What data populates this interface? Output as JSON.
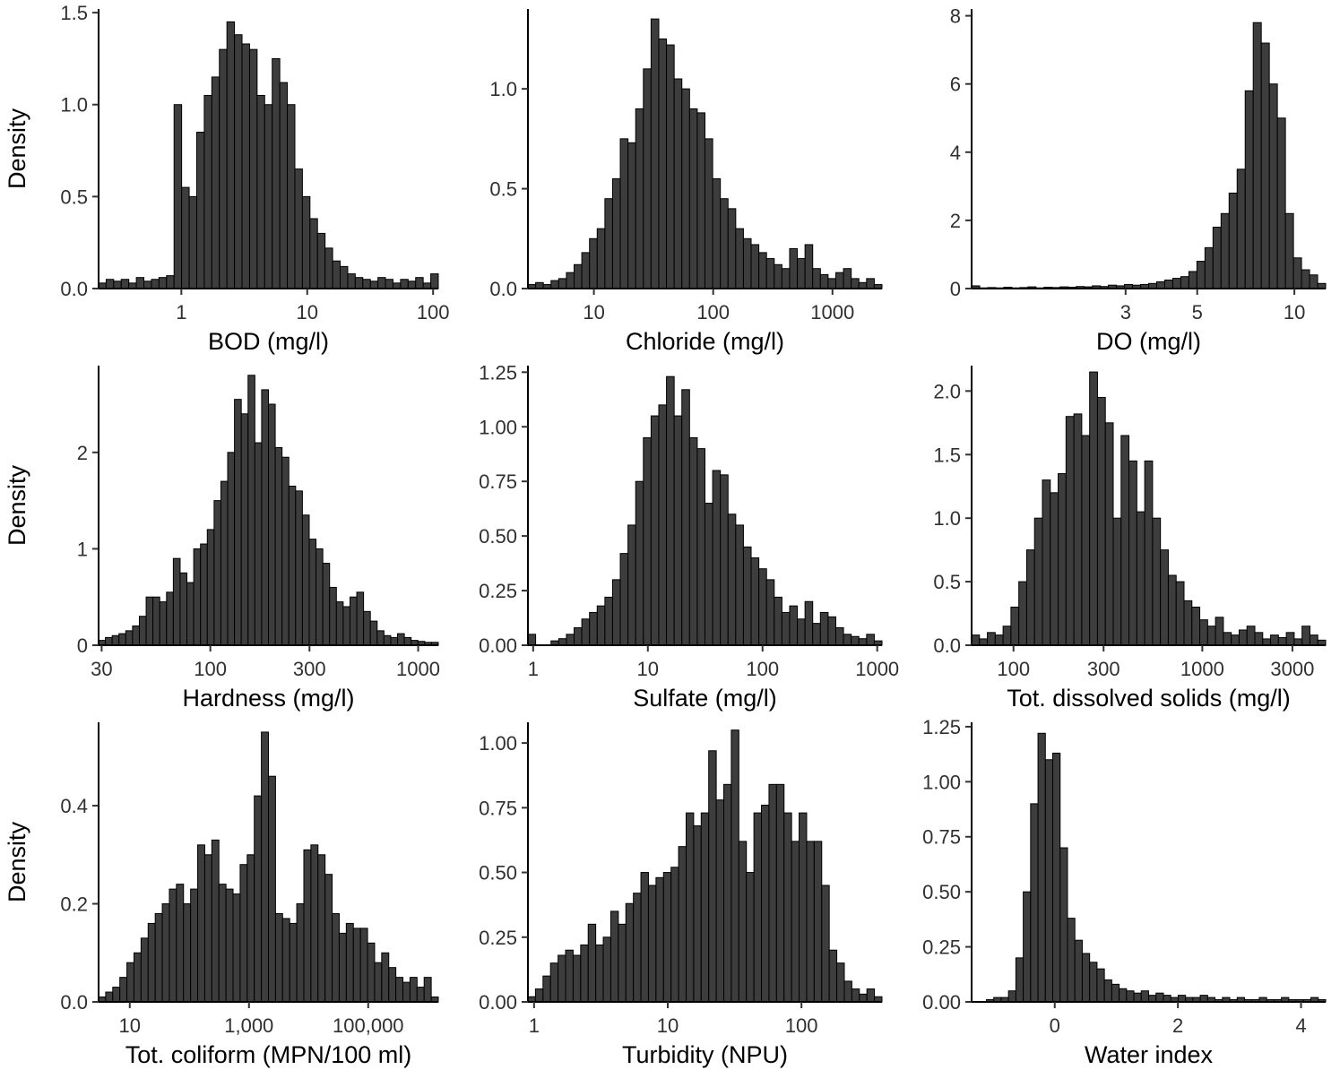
{
  "page": {
    "background": "#ffffff",
    "bar_fill": "#3d3d3d",
    "bar_stroke": "#000000",
    "axis_color": "#000000",
    "text_color": "#303030"
  },
  "chart_data": [
    {
      "type": "bar",
      "xlabel": "BOD (mg/l)",
      "ylabel": "Density",
      "x_scale": "log",
      "x_domain": [
        0.22,
        110
      ],
      "x_ticks": [
        1,
        10,
        100
      ],
      "x_tick_labels": [
        "1",
        "10",
        "100"
      ],
      "y_ticks": [
        0,
        0.5,
        1,
        1.5
      ],
      "y_tick_labels": [
        "0.0",
        "0.5",
        "1.0",
        "1.5"
      ],
      "y_max": 1.52,
      "heights": [
        0.03,
        0.05,
        0.04,
        0.05,
        0.03,
        0.06,
        0.04,
        0.05,
        0.06,
        0.07,
        1.0,
        0.55,
        0.5,
        0.85,
        1.05,
        1.15,
        1.3,
        1.45,
        1.38,
        1.33,
        1.3,
        1.05,
        1.0,
        1.25,
        1.12,
        1.0,
        0.65,
        0.5,
        0.38,
        0.3,
        0.22,
        0.15,
        0.12,
        0.08,
        0.06,
        0.05,
        0.04,
        0.06,
        0.05,
        0.03,
        0.05,
        0.04,
        0.06,
        0.03,
        0.08
      ]
    },
    {
      "type": "bar",
      "xlabel": "Chloride (mg/l)",
      "ylabel": "",
      "x_scale": "log",
      "x_domain": [
        2.8,
        2600
      ],
      "x_ticks": [
        10,
        100,
        1000
      ],
      "x_tick_labels": [
        "10",
        "100",
        "1000"
      ],
      "y_ticks": [
        0,
        0.5,
        1
      ],
      "y_tick_labels": [
        "0.0",
        "0.5",
        "1.0"
      ],
      "y_max": 1.4,
      "heights": [
        0.02,
        0.03,
        0.02,
        0.04,
        0.05,
        0.08,
        0.12,
        0.18,
        0.25,
        0.3,
        0.45,
        0.55,
        0.75,
        0.73,
        0.9,
        1.1,
        1.35,
        1.25,
        1.22,
        1.05,
        1.0,
        0.9,
        0.88,
        0.75,
        0.55,
        0.45,
        0.4,
        0.3,
        0.25,
        0.22,
        0.18,
        0.15,
        0.12,
        0.1,
        0.2,
        0.15,
        0.22,
        0.1,
        0.07,
        0.05,
        0.08,
        0.1,
        0.05,
        0.03,
        0.05,
        0.02
      ]
    },
    {
      "type": "bar",
      "xlabel": "DO (mg/l)",
      "ylabel": "",
      "x_scale": "log",
      "x_domain": [
        1.0,
        12.5
      ],
      "x_ticks": [
        3,
        5,
        10
      ],
      "x_tick_labels": [
        "3",
        "5",
        "10"
      ],
      "y_ticks": [
        0,
        2,
        4,
        6,
        8
      ],
      "y_tick_labels": [
        "0",
        "2",
        "4",
        "6",
        "8"
      ],
      "y_max": 8.2,
      "heights": [
        0.08,
        0.02,
        0.03,
        0.02,
        0.04,
        0.02,
        0.03,
        0.05,
        0.02,
        0.04,
        0.03,
        0.05,
        0.04,
        0.06,
        0.05,
        0.08,
        0.06,
        0.1,
        0.08,
        0.12,
        0.1,
        0.12,
        0.15,
        0.2,
        0.25,
        0.3,
        0.35,
        0.5,
        0.8,
        1.2,
        1.8,
        2.2,
        2.8,
        3.5,
        5.8,
        7.8,
        7.2,
        6.0,
        5.0,
        2.2,
        0.9,
        0.55,
        0.4,
        0.15
      ]
    },
    {
      "type": "bar",
      "xlabel": "Hardness (mg/l)",
      "ylabel": "Density",
      "x_scale": "log",
      "x_domain": [
        29,
        1250
      ],
      "x_ticks": [
        30,
        100,
        300,
        1000
      ],
      "x_tick_labels": [
        "30",
        "100",
        "300",
        "1000"
      ],
      "y_ticks": [
        0,
        1,
        2
      ],
      "y_tick_labels": [
        "0",
        "1",
        "2"
      ],
      "y_max": 2.9,
      "heights": [
        0.05,
        0.08,
        0.1,
        0.12,
        0.15,
        0.2,
        0.3,
        0.5,
        0.5,
        0.45,
        0.55,
        0.9,
        0.75,
        0.65,
        1.0,
        1.05,
        1.2,
        1.5,
        1.7,
        2.0,
        2.55,
        2.4,
        2.8,
        2.1,
        2.65,
        2.5,
        2.05,
        1.95,
        1.65,
        1.6,
        1.35,
        1.1,
        1.0,
        0.85,
        0.6,
        0.45,
        0.4,
        0.5,
        0.55,
        0.35,
        0.25,
        0.15,
        0.1,
        0.08,
        0.12,
        0.08,
        0.05,
        0.04,
        0.03,
        0.03
      ]
    },
    {
      "type": "bar",
      "xlabel": "Sulfate (mg/l)",
      "ylabel": "",
      "x_scale": "log",
      "x_domain": [
        0.9,
        1100
      ],
      "x_ticks": [
        1,
        10,
        100,
        1000
      ],
      "x_tick_labels": [
        "1",
        "10",
        "100",
        "1000"
      ],
      "y_ticks": [
        0,
        0.25,
        0.5,
        0.75,
        1,
        1.25
      ],
      "y_tick_labels": [
        "0.00",
        "0.25",
        "0.50",
        "0.75",
        "1.00",
        "1.25"
      ],
      "y_max": 1.28,
      "heights": [
        0.05,
        0,
        0,
        0.02,
        0.03,
        0.05,
        0.08,
        0.12,
        0.15,
        0.18,
        0.22,
        0.3,
        0.42,
        0.55,
        0.75,
        0.95,
        1.05,
        1.1,
        1.23,
        1.05,
        1.17,
        0.95,
        0.9,
        0.65,
        0.8,
        0.78,
        0.6,
        0.55,
        0.45,
        0.4,
        0.35,
        0.3,
        0.22,
        0.15,
        0.18,
        0.12,
        0.2,
        0.1,
        0.15,
        0.13,
        0.08,
        0.05,
        0.04,
        0.03,
        0.05,
        0.02
      ]
    },
    {
      "type": "bar",
      "xlabel": "Tot. dissolved solids (mg/l)",
      "ylabel": "",
      "x_scale": "log",
      "x_domain": [
        60,
        4500
      ],
      "x_ticks": [
        100,
        300,
        1000,
        3000
      ],
      "x_tick_labels": [
        "100",
        "300",
        "1000",
        "3000"
      ],
      "y_ticks": [
        0,
        0.5,
        1,
        1.5,
        2
      ],
      "y_tick_labels": [
        "0.0",
        "0.5",
        "1.0",
        "1.5",
        "2.0"
      ],
      "y_max": 2.2,
      "heights": [
        0.08,
        0.05,
        0.1,
        0.08,
        0.15,
        0.3,
        0.5,
        0.75,
        1.0,
        1.3,
        1.2,
        1.35,
        1.8,
        1.82,
        1.65,
        2.15,
        1.95,
        1.75,
        1.0,
        1.65,
        1.45,
        1.05,
        1.45,
        1.0,
        0.75,
        0.55,
        0.5,
        0.35,
        0.3,
        0.2,
        0.15,
        0.22,
        0.1,
        0.08,
        0.12,
        0.15,
        0.1,
        0.05,
        0.08,
        0.06,
        0.1,
        0.05,
        0.15,
        0.08,
        0.04
      ]
    },
    {
      "type": "bar",
      "xlabel": "Tot. coliform (MPN/100 ml)",
      "ylabel": "Density",
      "x_scale": "log",
      "x_domain": [
        3,
        1500000
      ],
      "x_ticks": [
        10,
        1000,
        100000
      ],
      "x_tick_labels": [
        "10",
        "1,000",
        "100,000"
      ],
      "y_ticks": [
        0,
        0.2,
        0.4
      ],
      "y_tick_labels": [
        "0.0",
        "0.2",
        "0.4"
      ],
      "y_max": 0.57,
      "heights": [
        0.01,
        0.02,
        0.03,
        0.05,
        0.08,
        0.1,
        0.13,
        0.16,
        0.18,
        0.2,
        0.23,
        0.24,
        0.2,
        0.23,
        0.32,
        0.3,
        0.33,
        0.24,
        0.23,
        0.22,
        0.28,
        0.3,
        0.42,
        0.55,
        0.46,
        0.18,
        0.17,
        0.16,
        0.2,
        0.31,
        0.32,
        0.3,
        0.26,
        0.18,
        0.14,
        0.16,
        0.15,
        0.15,
        0.12,
        0.08,
        0.1,
        0.07,
        0.05,
        0.04,
        0.05,
        0.03,
        0.05,
        0.01
      ]
    },
    {
      "type": "bar",
      "xlabel": "Turbidity (NPU)",
      "ylabel": "",
      "x_scale": "log",
      "x_domain": [
        0.9,
        400
      ],
      "x_ticks": [
        1,
        10,
        100
      ],
      "x_tick_labels": [
        "1",
        "10",
        "100"
      ],
      "y_ticks": [
        0,
        0.25,
        0.5,
        0.75,
        1
      ],
      "y_tick_labels": [
        "0.00",
        "0.25",
        "0.50",
        "0.75",
        "1.00"
      ],
      "y_max": 1.08,
      "heights": [
        0.02,
        0.05,
        0.1,
        0.15,
        0.18,
        0.2,
        0.18,
        0.22,
        0.3,
        0.22,
        0.25,
        0.35,
        0.3,
        0.38,
        0.42,
        0.5,
        0.45,
        0.48,
        0.5,
        0.52,
        0.6,
        0.73,
        0.68,
        0.73,
        0.97,
        0.78,
        0.84,
        1.05,
        0.62,
        0.5,
        0.73,
        0.76,
        0.84,
        0.84,
        0.73,
        0.62,
        0.73,
        0.62,
        0.62,
        0.45,
        0.2,
        0.15,
        0.08,
        0.05,
        0.03,
        0.05,
        0.02
      ]
    },
    {
      "type": "bar",
      "xlabel": "Water index",
      "ylabel": "",
      "x_scale": "linear",
      "x_domain": [
        -1.35,
        4.4
      ],
      "x_ticks": [
        0,
        2,
        4
      ],
      "x_tick_labels": [
        "0",
        "2",
        "4"
      ],
      "y_ticks": [
        0,
        0.25,
        0.5,
        0.75,
        1,
        1.25
      ],
      "y_tick_labels": [
        "0.00",
        "0.25",
        "0.50",
        "0.75",
        "1.00",
        "1.25"
      ],
      "y_max": 1.27,
      "heights": [
        0,
        0,
        0.01,
        0.02,
        0.02,
        0.05,
        0.2,
        0.5,
        0.9,
        1.22,
        1.1,
        1.13,
        0.7,
        0.38,
        0.28,
        0.22,
        0.18,
        0.15,
        0.1,
        0.08,
        0.06,
        0.05,
        0.04,
        0.05,
        0.03,
        0.04,
        0.03,
        0.02,
        0.03,
        0.02,
        0.02,
        0.03,
        0.02,
        0.01,
        0.02,
        0.01,
        0.02,
        0.01,
        0.01,
        0.02,
        0.01,
        0.01,
        0.02,
        0.01,
        0.01,
        0.01,
        0.02,
        0.01
      ]
    }
  ]
}
